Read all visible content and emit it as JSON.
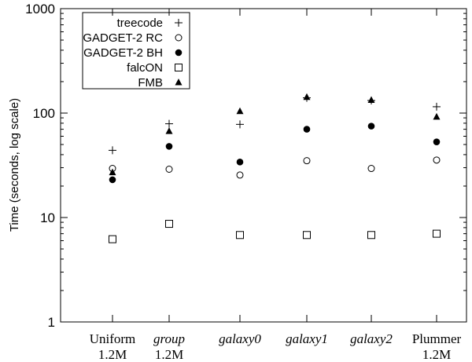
{
  "chart_data": {
    "type": "scatter",
    "ylabel": "Time (seconds, log scale)",
    "yscale": "log",
    "ylim": [
      1,
      1000
    ],
    "yticks": [
      "1",
      "10",
      "100",
      "1000"
    ],
    "yticks_values": [
      1,
      10,
      100,
      1000
    ],
    "categories": [
      {
        "line1": "Uniform",
        "line2": "1.2M",
        "italic": false
      },
      {
        "line1": "group",
        "line2": "1.2M",
        "italic": true
      },
      {
        "line1": "galaxy0",
        "line2": "",
        "italic": true
      },
      {
        "line1": "galaxy1",
        "line2": "",
        "italic": true
      },
      {
        "line1": "galaxy2",
        "line2": "",
        "italic": true
      },
      {
        "line1": "Plummer",
        "line2": "1.2M",
        "italic": false
      }
    ],
    "legend_position": "top-left",
    "series": [
      {
        "name": "treecode",
        "marker": "plus",
        "values": [
          44,
          79,
          78,
          140,
          132,
          115
        ]
      },
      {
        "name": "GADGET-2 RC",
        "marker": "circle-open",
        "values": [
          29.5,
          29,
          25.5,
          35,
          29.5,
          35.5
        ]
      },
      {
        "name": "GADGET-2 BH",
        "marker": "circle-filled",
        "values": [
          23,
          48,
          34,
          70,
          75,
          53
        ]
      },
      {
        "name": "falcON",
        "marker": "square-open",
        "values": [
          6.2,
          8.7,
          6.8,
          6.8,
          6.8,
          7.0
        ]
      },
      {
        "name": "FMB",
        "marker": "triangle-filled",
        "values": [
          27,
          67,
          104,
          142,
          133,
          92
        ]
      }
    ]
  }
}
